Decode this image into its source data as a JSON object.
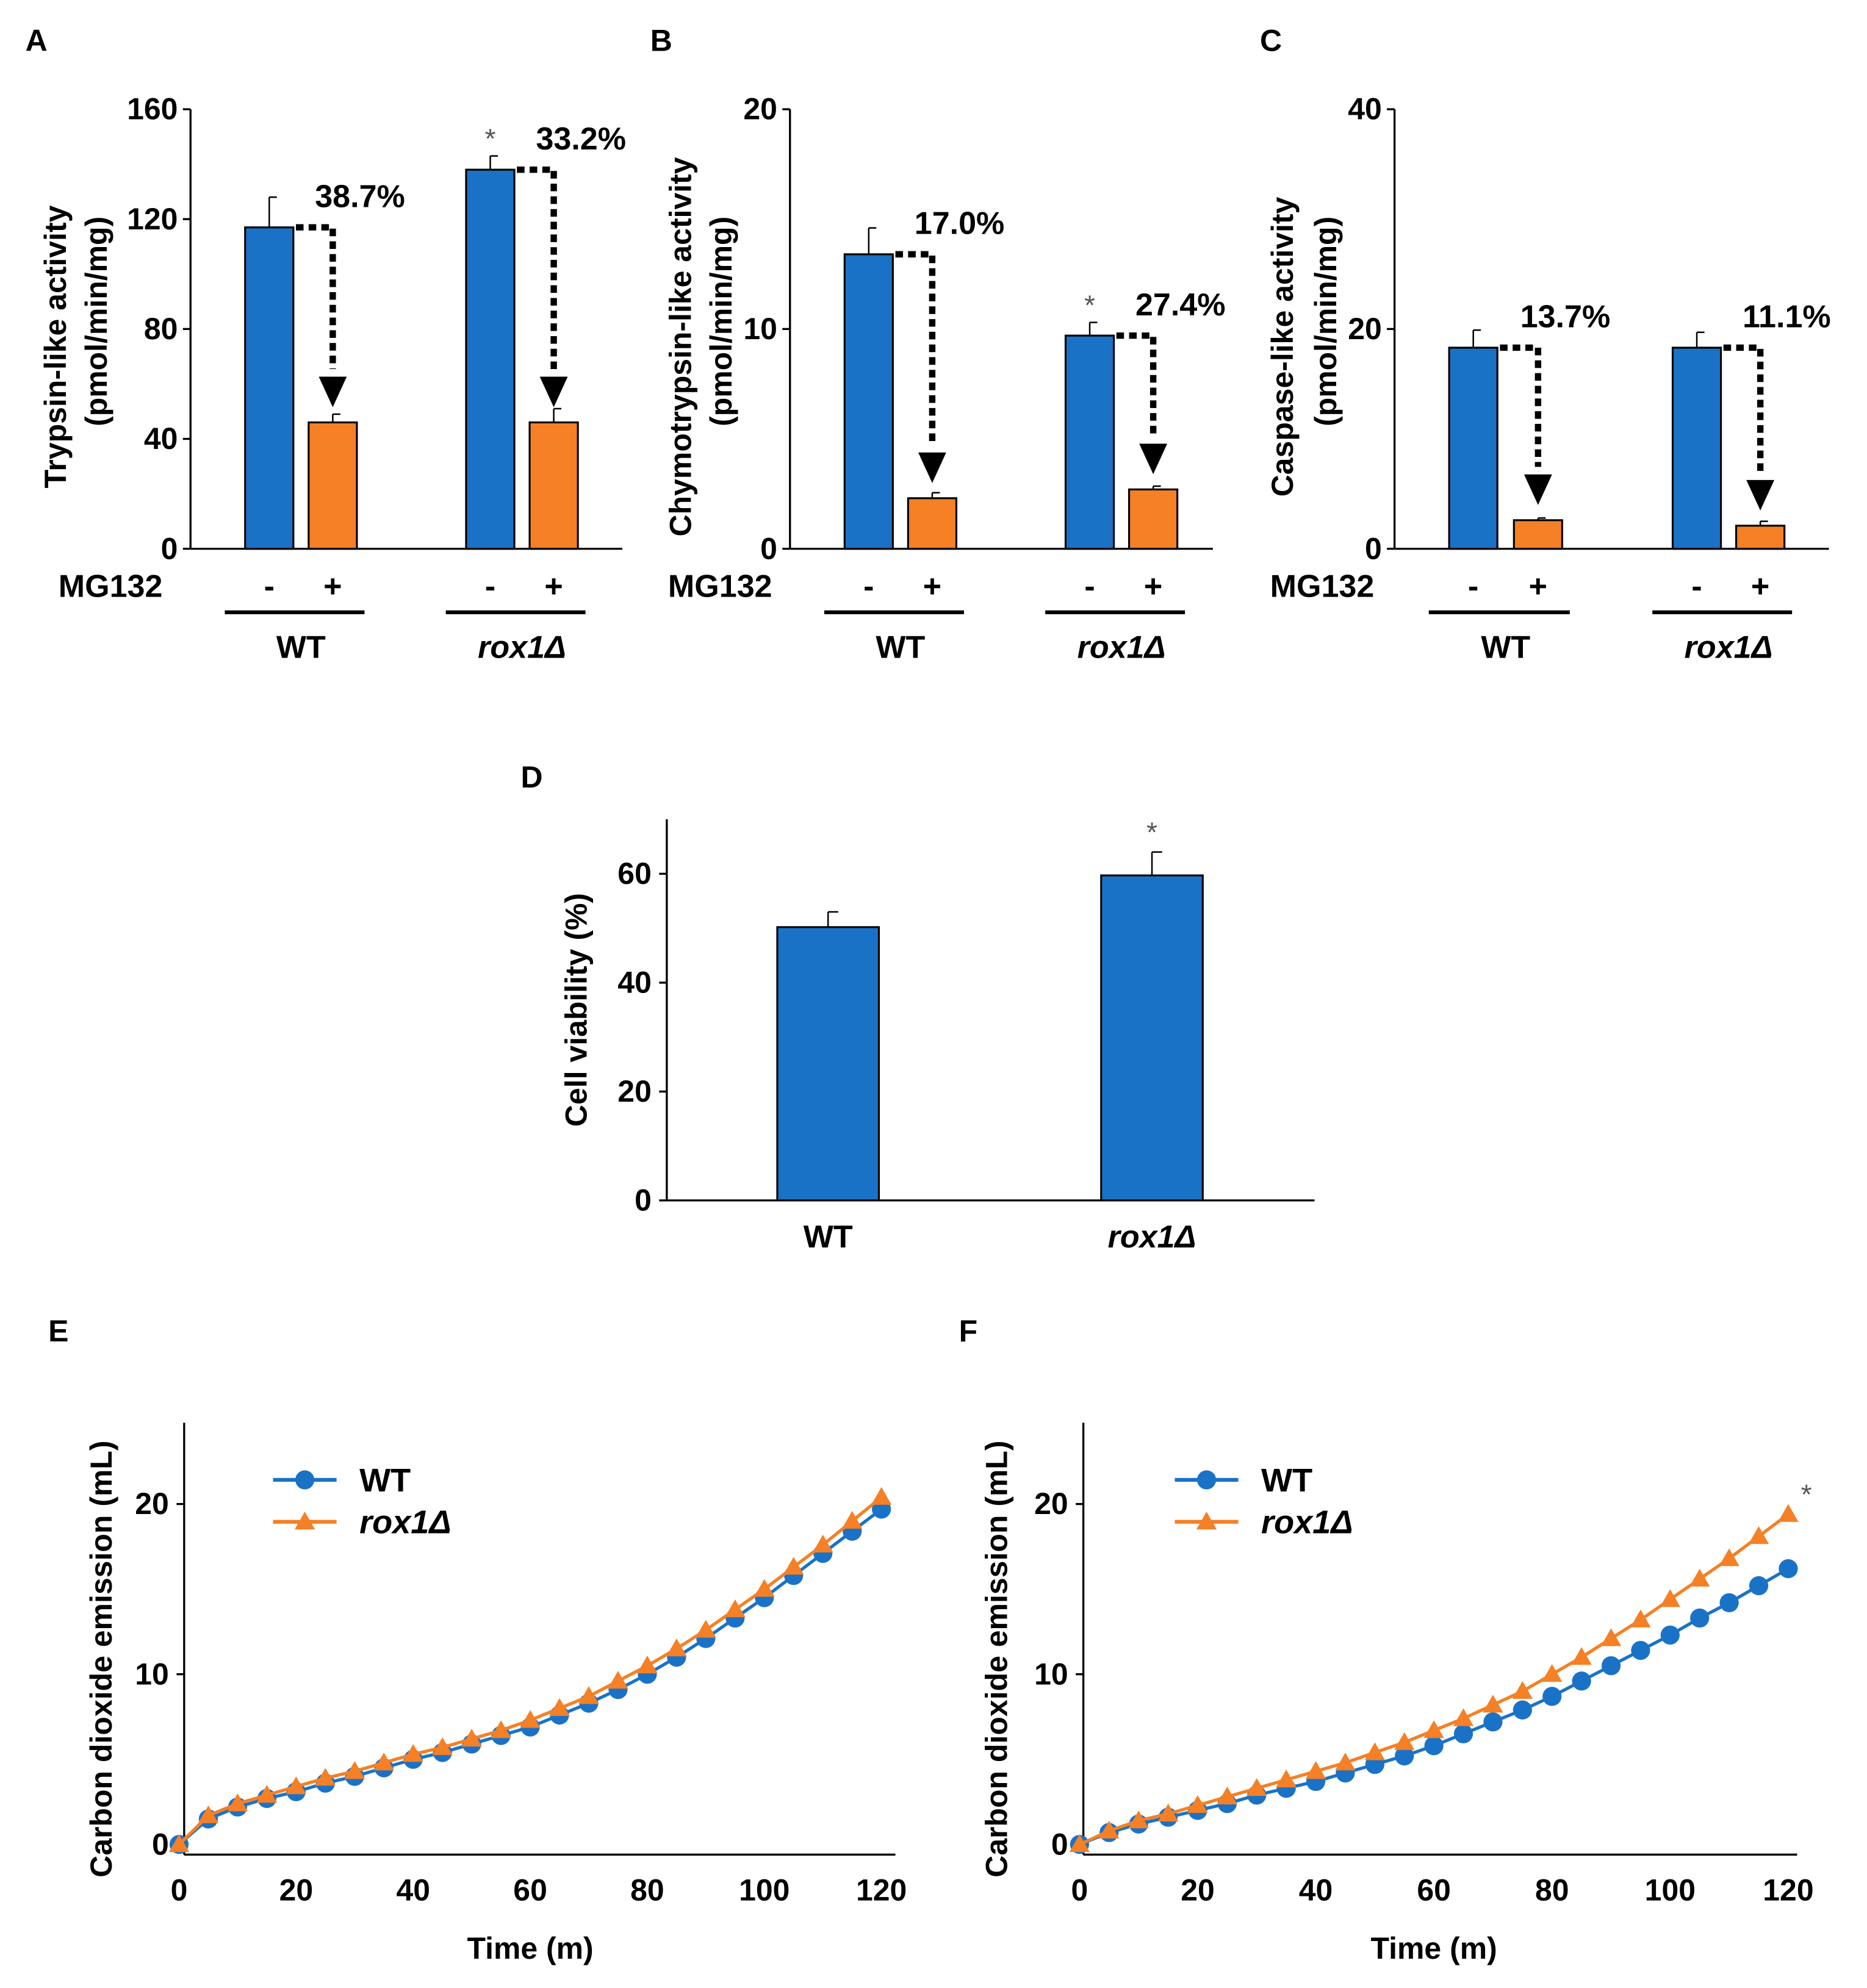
{
  "chart_data": [
    {
      "panel": "A",
      "type": "bar",
      "ylabel": [
        "Trypsin-like activity",
        "(pmol/min/mg)"
      ],
      "ylim": [
        0,
        160
      ],
      "yticks": [
        0,
        40,
        80,
        120,
        160
      ],
      "treatment_label": "MG132",
      "treatment_signs": [
        "-",
        "+"
      ],
      "groups": [
        {
          "name": "WT",
          "italic": false,
          "values": [
            117,
            46
          ],
          "errors": [
            11,
            3
          ],
          "reduction_label": "38.7%",
          "significance": ""
        },
        {
          "name": "rox1Δ",
          "italic": true,
          "values": [
            138,
            46
          ],
          "errors": [
            5,
            5
          ],
          "reduction_label": "33.2%",
          "significance": "*"
        }
      ]
    },
    {
      "panel": "B",
      "type": "bar",
      "ylabel": [
        "Chymotrypsin-like activity",
        "(pmol/min/mg)"
      ],
      "ylim": [
        0,
        20
      ],
      "yticks": [
        0,
        10,
        20
      ],
      "treatment_label": "MG132",
      "treatment_signs": [
        "-",
        "+"
      ],
      "groups": [
        {
          "name": "WT",
          "italic": false,
          "values": [
            13.4,
            2.3
          ],
          "errors": [
            1.2,
            0.25
          ],
          "reduction_label": "17.0%",
          "significance": ""
        },
        {
          "name": "rox1Δ",
          "italic": true,
          "values": [
            9.7,
            2.7
          ],
          "errors": [
            0.6,
            0.15
          ],
          "reduction_label": "27.4%",
          "significance": "*"
        }
      ]
    },
    {
      "panel": "C",
      "type": "bar",
      "ylabel": [
        "Caspase-like activity",
        "(pmol/min/mg)"
      ],
      "ylim": [
        0,
        40
      ],
      "yticks": [
        0,
        20,
        40
      ],
      "treatment_label": "MG132",
      "treatment_signs": [
        "-",
        "+"
      ],
      "groups": [
        {
          "name": "WT",
          "italic": false,
          "values": [
            18.3,
            2.6
          ],
          "errors": [
            1.6,
            0.2
          ],
          "reduction_label": "13.7%",
          "significance": ""
        },
        {
          "name": "rox1Δ",
          "italic": true,
          "values": [
            18.3,
            2.1
          ],
          "errors": [
            1.4,
            0.4
          ],
          "reduction_label": "11.1%",
          "significance": ""
        }
      ]
    },
    {
      "panel": "D",
      "type": "bar",
      "ylabel": [
        "Cell viability (%)"
      ],
      "ylim": [
        0,
        70
      ],
      "yticks": [
        0,
        20,
        40,
        60
      ],
      "categories": [
        {
          "name": "WT",
          "italic": false
        },
        {
          "name": "rox1Δ",
          "italic": true
        }
      ],
      "values": [
        50.2,
        59.7
      ],
      "errors": [
        2.8,
        4.3
      ],
      "significance": [
        "",
        "*"
      ]
    },
    {
      "panel": "E",
      "type": "line",
      "xlabel": "Time (m)",
      "ylabel": "Carbon dioxide emission (mL)",
      "xlim": [
        0,
        120
      ],
      "ylim": [
        0,
        25
      ],
      "xticks": [
        0,
        20,
        40,
        60,
        80,
        100,
        120
      ],
      "yticks": [
        0,
        10,
        20
      ],
      "x": [
        0,
        5,
        10,
        15,
        20,
        25,
        30,
        35,
        40,
        45,
        50,
        55,
        60,
        65,
        70,
        75,
        80,
        85,
        90,
        95,
        100,
        105,
        110,
        115,
        120
      ],
      "series": [
        {
          "name": "WT",
          "italic": false,
          "marker": "circle",
          "color": "#1a72c7",
          "values": [
            0,
            1.5,
            2.2,
            2.7,
            3.1,
            3.6,
            4.0,
            4.5,
            5.0,
            5.4,
            5.9,
            6.4,
            6.9,
            7.6,
            8.3,
            9.1,
            10.0,
            11.0,
            12.1,
            13.3,
            14.5,
            15.8,
            17.1,
            18.4,
            19.7
          ]
        },
        {
          "name": "rox1Δ",
          "italic": true,
          "marker": "triangle",
          "color": "#f58025",
          "values": [
            0,
            1.7,
            2.4,
            2.9,
            3.4,
            3.9,
            4.3,
            4.8,
            5.3,
            5.7,
            6.2,
            6.7,
            7.3,
            8.0,
            8.7,
            9.6,
            10.5,
            11.5,
            12.6,
            13.8,
            15.0,
            16.3,
            17.6,
            19.0,
            20.4
          ]
        }
      ],
      "significance": ""
    },
    {
      "panel": "F",
      "type": "line",
      "xlabel": "Time (m)",
      "ylabel": "Carbon dioxide emission (mL)",
      "xlim": [
        0,
        120
      ],
      "ylim": [
        0,
        25
      ],
      "xticks": [
        0,
        20,
        40,
        60,
        80,
        100,
        120
      ],
      "yticks": [
        0,
        10,
        20
      ],
      "x": [
        0,
        5,
        10,
        15,
        20,
        25,
        30,
        35,
        40,
        45,
        50,
        55,
        60,
        65,
        70,
        75,
        80,
        85,
        90,
        95,
        100,
        105,
        110,
        115,
        120
      ],
      "series": [
        {
          "name": "WT",
          "italic": false,
          "marker": "circle",
          "color": "#1a72c7",
          "values": [
            0,
            0.7,
            1.2,
            1.6,
            2.0,
            2.4,
            2.9,
            3.3,
            3.7,
            4.2,
            4.7,
            5.2,
            5.8,
            6.5,
            7.2,
            7.9,
            8.7,
            9.6,
            10.5,
            11.4,
            12.3,
            13.3,
            14.2,
            15.2,
            16.2
          ]
        },
        {
          "name": "rox1Δ",
          "italic": true,
          "marker": "triangle",
          "color": "#f58025",
          "values": [
            0,
            0.8,
            1.4,
            1.8,
            2.3,
            2.8,
            3.3,
            3.8,
            4.3,
            4.8,
            5.4,
            6.0,
            6.7,
            7.4,
            8.2,
            9.0,
            10.0,
            11.0,
            12.1,
            13.2,
            14.4,
            15.6,
            16.8,
            18.1,
            19.4
          ]
        }
      ],
      "significance": "*"
    }
  ]
}
